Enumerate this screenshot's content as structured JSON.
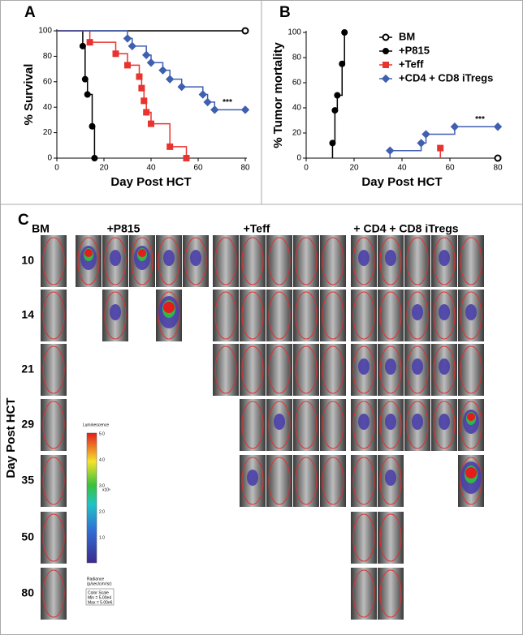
{
  "chart_data": [
    {
      "type": "line",
      "panel": "A",
      "ylabel": "% Survival",
      "xlabel": "Day Post HCT",
      "annotation": "***",
      "xlim": [
        0,
        80
      ],
      "xticks": [
        0,
        20,
        40,
        60,
        80
      ],
      "ylim": [
        0,
        100
      ],
      "yticks": [
        0,
        20,
        40,
        60,
        80,
        100
      ],
      "series": [
        {
          "color": "#000000",
          "marker": "circle",
          "filled": false,
          "x": [
            80
          ],
          "values": [
            100
          ]
        },
        {
          "color": "#000000",
          "marker": "circle",
          "filled": true,
          "x": [
            11,
            12,
            13,
            15,
            16
          ],
          "values": [
            88,
            62,
            50,
            25,
            0
          ]
        },
        {
          "color": "#e8332f",
          "marker": "square",
          "filled": true,
          "x": [
            14,
            25,
            30,
            35,
            36,
            37,
            38,
            40,
            48,
            55
          ],
          "values": [
            91,
            82,
            73,
            64,
            55,
            45,
            36,
            27,
            9,
            0
          ]
        },
        {
          "color": "#3f5fb0",
          "marker": "diamond",
          "filled": true,
          "x": [
            30,
            32,
            38,
            40,
            45,
            48,
            53,
            62,
            64,
            67,
            80
          ],
          "values": [
            94,
            88,
            81,
            75,
            69,
            62,
            56,
            50,
            44,
            38,
            38
          ]
        }
      ]
    },
    {
      "type": "line",
      "panel": "B",
      "ylabel": "% Tumor mortality",
      "xlabel": "Day Post HCT",
      "annotation": "***",
      "legend": "upper right",
      "xlim": [
        0,
        80
      ],
      "xticks": [
        0,
        20,
        40,
        60,
        80
      ],
      "ylim": [
        0,
        100
      ],
      "yticks": [
        0,
        20,
        40,
        60,
        80,
        100
      ],
      "series": [
        {
          "name": "BM",
          "color": "#000000",
          "marker": "circle",
          "filled": false,
          "x": [
            80
          ],
          "values": [
            0
          ]
        },
        {
          "name": "+P815",
          "color": "#000000",
          "marker": "circle",
          "filled": true,
          "x": [
            11,
            12,
            13,
            15,
            16
          ],
          "values": [
            12,
            38,
            50,
            75,
            100
          ]
        },
        {
          "name": "+Teff",
          "color": "#e8332f",
          "marker": "square",
          "filled": true,
          "x": [
            56
          ],
          "values": [
            8
          ]
        },
        {
          "name": "+CD4 + CD8 iTregs",
          "color": "#3f5fb0",
          "marker": "diamond",
          "filled": true,
          "x": [
            35,
            48,
            50,
            62,
            80
          ],
          "values": [
            6,
            12,
            19,
            25,
            25
          ]
        }
      ]
    }
  ],
  "panel_c": {
    "panel": "C",
    "ylabel": "Day Post HCT",
    "columns": [
      "BM",
      "+P815",
      "+Teff",
      "+ CD4 + CD8 iTregs"
    ],
    "rows": [
      "10",
      "14",
      "21",
      "29",
      "35",
      "50",
      "80"
    ],
    "colorbar": {
      "title": "Luminescence",
      "ticks": [
        "5.0",
        "4.0",
        "3.0",
        "2.0",
        "1.0"
      ],
      "unit": "x10⁶",
      "radiance": "Radiance",
      "radiance_unit": "(p/sec/cm²/sr)",
      "scale": "Color Scale",
      "min": "Min = 5.00e4",
      "max": "Max = 5.00e6"
    }
  }
}
